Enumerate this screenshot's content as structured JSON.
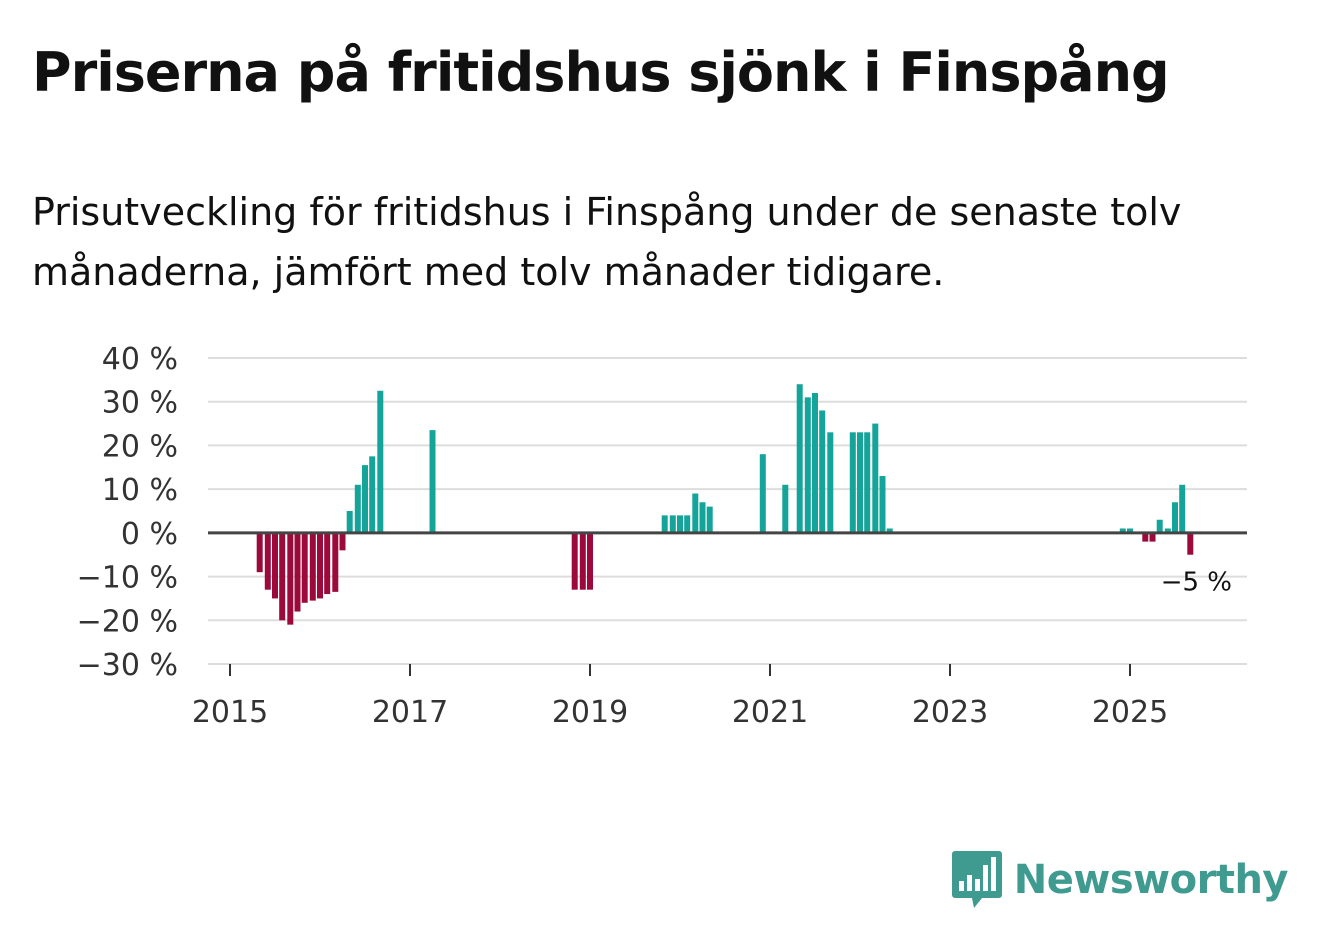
{
  "title": "Priserna på fritidshus sjönk i Finspång",
  "subtitle": "Prisutveckling för fritidshus i Finspång under de senaste tolv månaderna, jämfört med tolv månader tidigare.",
  "brand": {
    "name": "Newsworthy",
    "color": "#3f9a90"
  },
  "colors": {
    "positive": "#14a49a",
    "negative": "#9b0a3b",
    "zero_line": "#444444",
    "grid": "#dddddd"
  },
  "chart_data": {
    "type": "bar",
    "title": "Priserna på fritidshus sjönk i Finspång",
    "xlabel": "",
    "ylabel": "",
    "ylim": [
      -30,
      40
    ],
    "y_ticks": [
      40,
      30,
      20,
      10,
      0,
      -10,
      -20,
      -30
    ],
    "y_tick_labels": [
      "40 %",
      "30 %",
      "20 %",
      "10 %",
      "0 %",
      "−10 %",
      "−20 %",
      "−30 %"
    ],
    "x_range": [
      2015.0,
      2026.3
    ],
    "x_ticks": [
      2015,
      2017,
      2019,
      2021,
      2023,
      2025
    ],
    "x_tick_labels": [
      "2015",
      "2017",
      "2019",
      "2021",
      "2023",
      "2025"
    ],
    "end_label": "−5 %",
    "series": [
      {
        "name": "Prisutveckling",
        "points": [
          {
            "x": 2015.33,
            "y": -9
          },
          {
            "x": 2015.42,
            "y": -13
          },
          {
            "x": 2015.5,
            "y": -15
          },
          {
            "x": 2015.58,
            "y": -20
          },
          {
            "x": 2015.67,
            "y": -21
          },
          {
            "x": 2015.75,
            "y": -18
          },
          {
            "x": 2015.83,
            "y": -16
          },
          {
            "x": 2015.92,
            "y": -15.5
          },
          {
            "x": 2016.0,
            "y": -15
          },
          {
            "x": 2016.08,
            "y": -14
          },
          {
            "x": 2016.17,
            "y": -13.5
          },
          {
            "x": 2016.25,
            "y": -4
          },
          {
            "x": 2016.33,
            "y": 5
          },
          {
            "x": 2016.42,
            "y": 11
          },
          {
            "x": 2016.5,
            "y": 15.5
          },
          {
            "x": 2016.58,
            "y": 17.5
          },
          {
            "x": 2016.67,
            "y": 32.5
          },
          {
            "x": 2017.25,
            "y": 23.5
          },
          {
            "x": 2018.83,
            "y": -13
          },
          {
            "x": 2018.92,
            "y": -13
          },
          {
            "x": 2019.0,
            "y": -13
          },
          {
            "x": 2019.83,
            "y": 4
          },
          {
            "x": 2019.92,
            "y": 4
          },
          {
            "x": 2020.0,
            "y": 4
          },
          {
            "x": 2020.08,
            "y": 4
          },
          {
            "x": 2020.17,
            "y": 9
          },
          {
            "x": 2020.25,
            "y": 7
          },
          {
            "x": 2020.33,
            "y": 6
          },
          {
            "x": 2020.92,
            "y": 18
          },
          {
            "x": 2021.17,
            "y": 11
          },
          {
            "x": 2021.33,
            "y": 34
          },
          {
            "x": 2021.42,
            "y": 31
          },
          {
            "x": 2021.5,
            "y": 32
          },
          {
            "x": 2021.58,
            "y": 28
          },
          {
            "x": 2021.67,
            "y": 23
          },
          {
            "x": 2021.92,
            "y": 23
          },
          {
            "x": 2022.0,
            "y": 23
          },
          {
            "x": 2022.08,
            "y": 23
          },
          {
            "x": 2022.17,
            "y": 25
          },
          {
            "x": 2022.25,
            "y": 13
          },
          {
            "x": 2022.33,
            "y": 1
          },
          {
            "x": 2024.92,
            "y": 1
          },
          {
            "x": 2025.0,
            "y": 1
          },
          {
            "x": 2025.17,
            "y": -2
          },
          {
            "x": 2025.25,
            "y": -2
          },
          {
            "x": 2025.33,
            "y": 3
          },
          {
            "x": 2025.42,
            "y": 1
          },
          {
            "x": 2025.5,
            "y": 7
          },
          {
            "x": 2025.58,
            "y": 11
          },
          {
            "x": 2025.67,
            "y": -5
          }
        ]
      }
    ]
  }
}
